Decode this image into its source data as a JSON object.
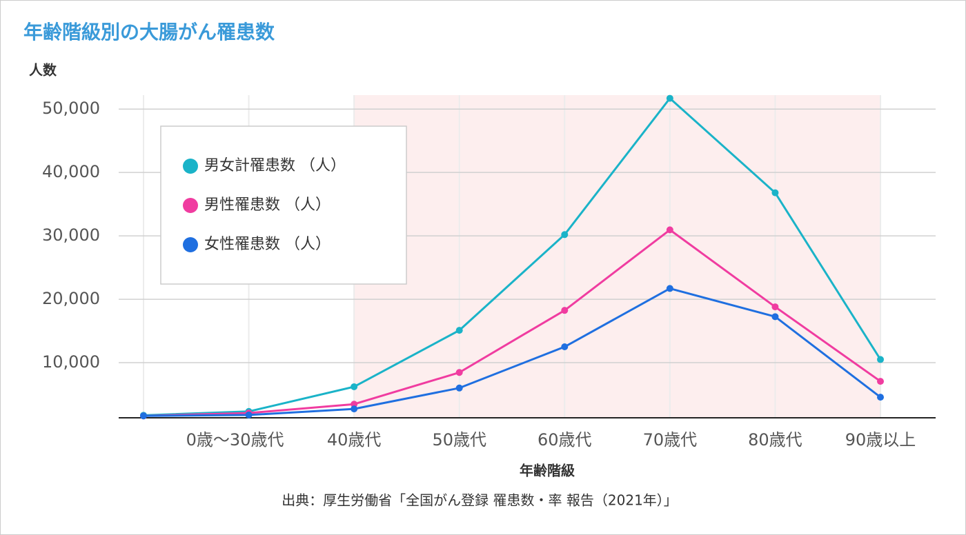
{
  "chart_data": {
    "type": "line",
    "title": "年齢階級別の大腸がん罹患数",
    "y_label": "人数",
    "x_label": "年齢階級",
    "source": "出典：厚生労働省「全国がん登録 罹患数・率 報告（2021年）」",
    "categories": [
      null,
      "0歳～30歳代",
      "40歳代",
      "50歳代",
      "60歳代",
      "70歳代",
      "80歳代",
      "90歳以上"
    ],
    "series": [
      {
        "name": "男女計罹患数 （人）",
        "color": "#1ab3c8",
        "values": [
          1700,
          2300,
          6200,
          15100,
          30200,
          51700,
          36800,
          10500
        ]
      },
      {
        "name": "男性罹患数 （人）",
        "color": "#f03ca0",
        "values": [
          1600,
          2050,
          3450,
          8450,
          18250,
          30950,
          18800,
          7050
        ]
      },
      {
        "name": "女性罹患数 （人）",
        "color": "#1f6fe0",
        "values": [
          1600,
          1750,
          2700,
          6000,
          12500,
          21700,
          17250,
          4550
        ]
      }
    ],
    "ylim": [
      1300,
      52200
    ],
    "yticks": [
      {
        "value": 10000,
        "label": "10,000"
      },
      {
        "value": 20000,
        "label": "20,000"
      },
      {
        "value": 30000,
        "label": "30,000"
      },
      {
        "value": 40000,
        "label": "40,000"
      },
      {
        "value": 50000,
        "label": "50,000"
      }
    ],
    "grid": true,
    "highlight_range": [
      "40歳代",
      "90歳以上"
    ],
    "highlight_color": "#fdeeee",
    "legend": "upper left"
  }
}
